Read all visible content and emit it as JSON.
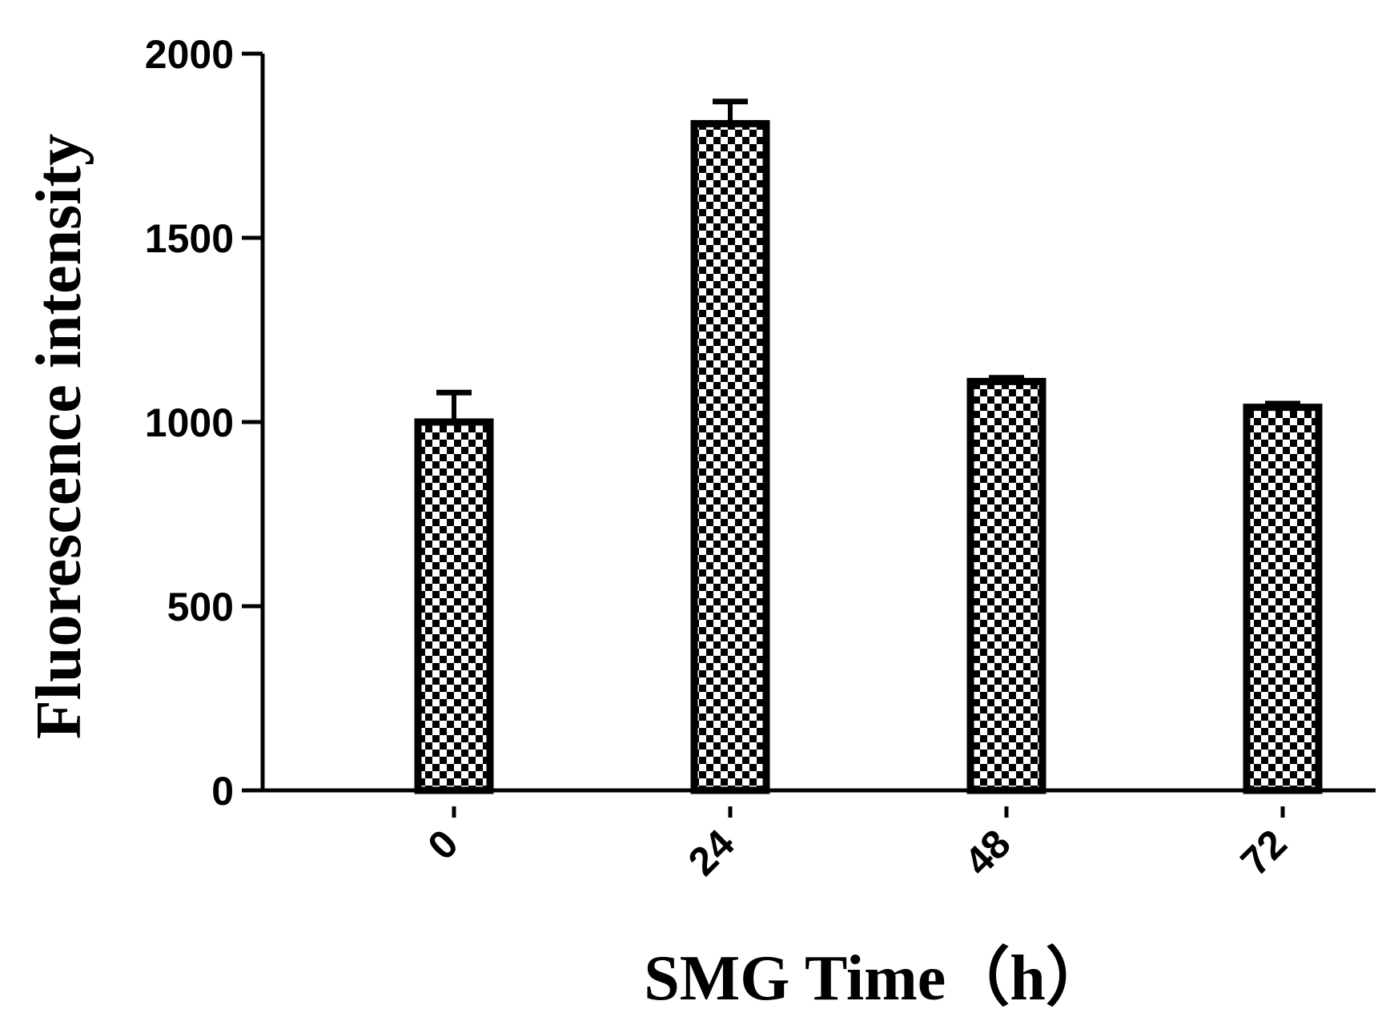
{
  "chart_data": {
    "type": "bar",
    "xlabel": "SMG Time（h）",
    "ylabel": "Fluorescence intensity",
    "categories": [
      "0",
      "24",
      "48",
      "72"
    ],
    "values": [
      1000,
      1810,
      1110,
      1040
    ],
    "errors": [
      80,
      60,
      10,
      10
    ],
    "ylim": [
      0,
      2000
    ],
    "yticks": [
      0,
      500,
      1000,
      1500,
      2000
    ],
    "ytick_labels": [
      "0",
      "500",
      "1000",
      "1500",
      "2000"
    ],
    "bar_pattern": "checkerboard",
    "grid": false,
    "legend": "none",
    "colors": {
      "bar_fill": "#ffffff",
      "bar_edge": "#000000",
      "pattern": "#000000"
    }
  }
}
